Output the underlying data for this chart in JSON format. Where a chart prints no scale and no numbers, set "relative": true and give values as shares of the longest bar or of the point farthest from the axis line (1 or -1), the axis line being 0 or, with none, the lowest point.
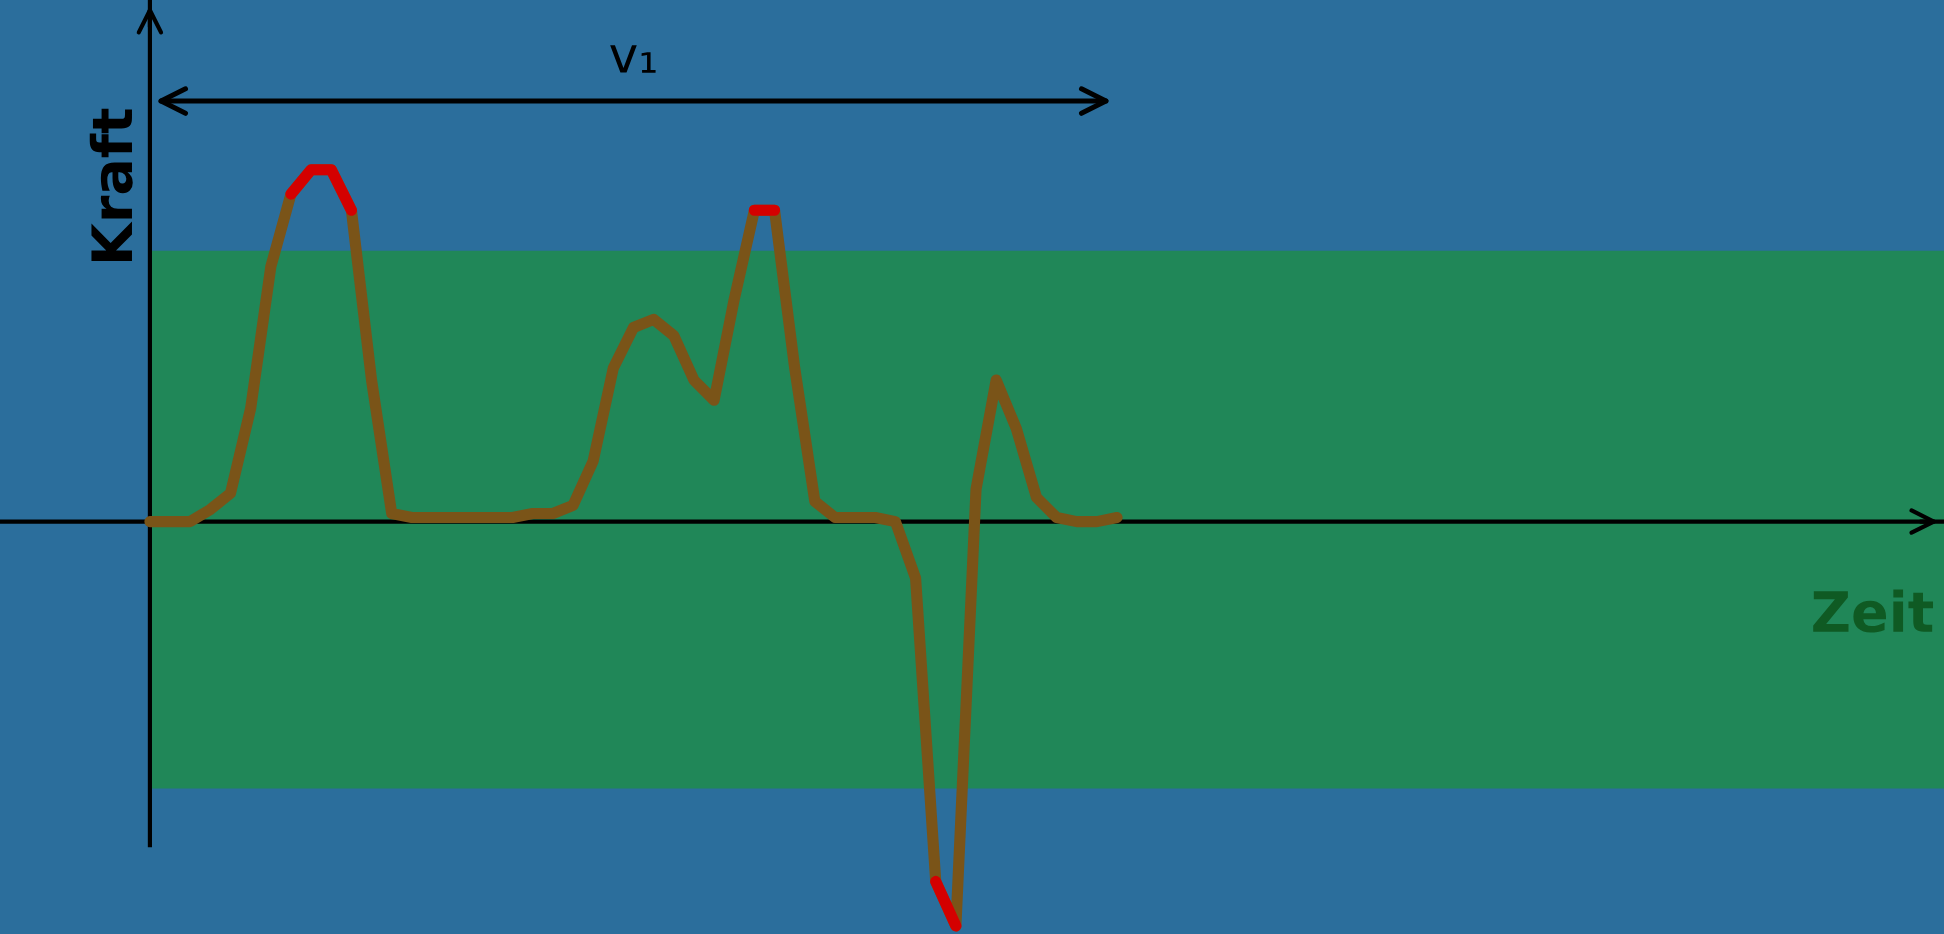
{
  "chart_data": {
    "type": "line",
    "relative": true,
    "ylabel": "Kraft",
    "annotations": [
      "v₁",
      "Zeit"
    ],
    "legend": false,
    "marker": "none",
    "line_style": "solid",
    "categories": [
      null,
      null,
      null,
      null,
      null,
      null,
      null,
      null,
      null,
      null,
      null,
      null,
      null,
      null,
      null,
      null,
      null,
      null,
      null,
      null,
      null,
      null,
      null,
      null,
      null,
      null,
      null,
      null,
      null,
      null,
      null,
      null,
      null,
      null,
      null,
      null,
      null,
      null,
      null,
      null,
      null,
      null,
      null,
      null,
      null,
      null,
      null,
      null,
      null
    ],
    "series": [
      {
        "color": "#7a5418",
        "values": [
          0,
          0,
          0,
          0.03,
          0.07,
          0.28,
          0.63,
          0.81,
          0.87,
          0.87,
          0.77,
          0.35,
          0.02,
          0.01,
          0.01,
          0.01,
          0.01,
          0.01,
          0.01,
          0.02,
          0.02,
          0.04,
          0.15,
          0.38,
          0.48,
          0.5,
          0.46,
          0.35,
          0.3,
          0.55,
          0.77,
          0.77,
          0.38,
          0.05,
          0.01,
          0.01,
          0.01,
          0,
          -0.14,
          -0.89,
          -1.0,
          0.08,
          0.35,
          0.23,
          0.06,
          0.01,
          0,
          0,
          0.01
        ]
      },
      {
        "color": "#d40000",
        "values": [
          null,
          null,
          null,
          null,
          null,
          null,
          null,
          0.81,
          0.87,
          0.87,
          0.77,
          null,
          null,
          null,
          null,
          null,
          null,
          null,
          null,
          null,
          null,
          null,
          null,
          null,
          null,
          null,
          null,
          null,
          null,
          null,
          0.77,
          0.77,
          null,
          null,
          null,
          null,
          null,
          null,
          null,
          -0.89,
          -1.0,
          null,
          null,
          null,
          null,
          null,
          null,
          null,
          null
        ]
      }
    ],
    "bands": [
      {
        "axis": "y",
        "from": -0.66,
        "to": 0.67,
        "color": "#1e8c4c"
      }
    ]
  }
}
